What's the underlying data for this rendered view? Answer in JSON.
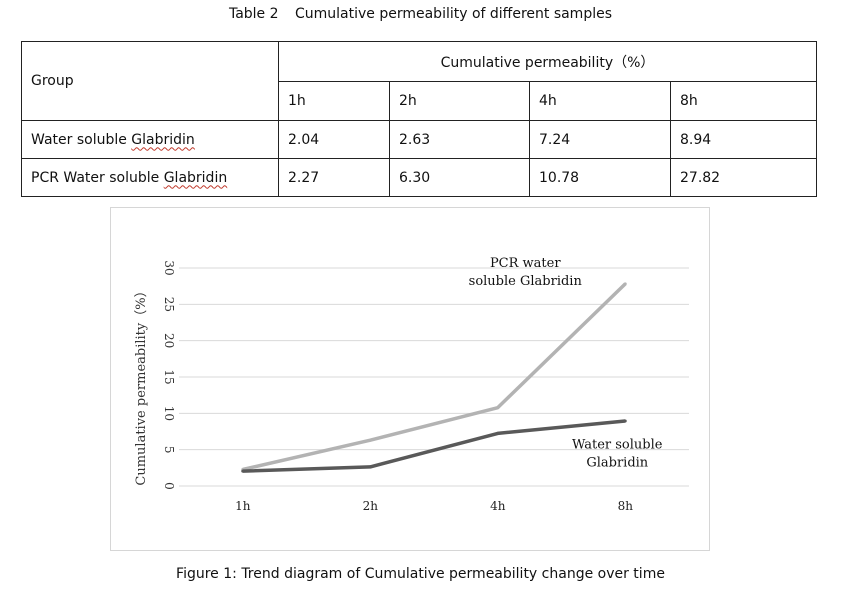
{
  "table": {
    "number": "Table 2",
    "title": "Cumulative permeability of different samples",
    "group_header": "Group",
    "measure_header": "Cumulative permeability（%）",
    "time_headers": [
      "1h",
      "2h",
      "4h",
      "8h"
    ],
    "rows": [
      {
        "group": "Water soluble Glabridin",
        "values": [
          "2.04",
          "2.63",
          "7.24",
          "8.94"
        ]
      },
      {
        "group": "PCR Water soluble Glabridin",
        "values": [
          "2.27",
          "6.30",
          "10.78",
          "27.82"
        ]
      }
    ]
  },
  "figure_caption": "Figure 1: Trend diagram of Cumulative permeability change over time",
  "chart_data": {
    "type": "line",
    "categories": [
      "1h",
      "2h",
      "4h",
      "8h"
    ],
    "ylabel": "Cumulative permeability（%）",
    "ylim": [
      0,
      30
    ],
    "yticks": [
      0,
      5,
      10,
      15,
      20,
      25,
      30
    ],
    "grid": "horizontal",
    "legend": "none (direct labels)",
    "series": [
      {
        "name": "PCR water soluble Glabridin",
        "label_lines": [
          "PCR water",
          "soluble Glabridin"
        ],
        "values": [
          2.27,
          6.3,
          10.78,
          27.82
        ],
        "color": "#b3b3b3"
      },
      {
        "name": "Water soluble Glabridin",
        "label_lines": [
          "Water soluble",
          "Glabridin"
        ],
        "values": [
          2.04,
          2.63,
          7.24,
          8.94
        ],
        "color": "#595959"
      }
    ]
  }
}
